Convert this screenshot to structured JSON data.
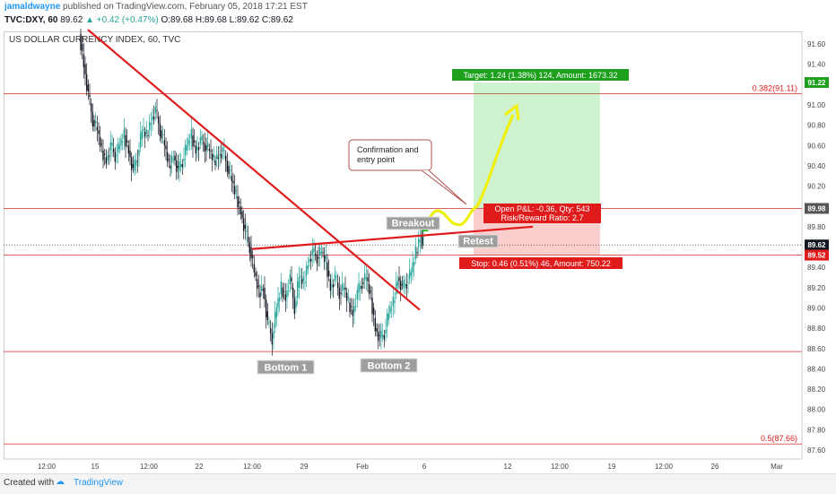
{
  "publish": {
    "author": "jamaldwayne",
    "text": "published on TradingView.com, February 05, 2018 17:21 EST"
  },
  "quote": {
    "symbol": "TVC:DXY, 60",
    "last": "89.62",
    "change": "▲ +0.42 (+0.47%)",
    "open": "O:89.68",
    "high": "H:89.68",
    "low": "L:89.62",
    "close": "C:89.62"
  },
  "chart_title": "US DOLLAR CURRENCY INDEX, 60, TVC",
  "chart_data": {
    "type": "candlestick",
    "price_axis": {
      "ticks": [
        "91.60",
        "91.40",
        "91.20",
        "91.00",
        "90.80",
        "90.60",
        "90.40",
        "90.20",
        "90.00",
        "89.80",
        "89.60",
        "89.40",
        "89.20",
        "89.00",
        "88.80",
        "88.60",
        "88.40",
        "88.20",
        "88.00",
        "87.80",
        "87.60"
      ],
      "range": [
        87.6,
        91.8
      ]
    },
    "time_axis": {
      "ticks": [
        "12:00",
        "15",
        "12:00",
        "22",
        "12:00",
        "29",
        "Feb",
        "6",
        "12",
        "12:00",
        "19",
        "12:00",
        "26",
        "Mar"
      ]
    },
    "price_tags": [
      {
        "label": "91.22",
        "price": 91.22,
        "color": "#1ea01e"
      },
      {
        "label": "89.98",
        "price": 89.98,
        "color": "#555555"
      },
      {
        "label": "89.62",
        "price": 89.62,
        "color": "#131722"
      },
      {
        "label": "38:28",
        "price": 89.53,
        "color": "#131722"
      },
      {
        "label": "89.52",
        "price": 89.52,
        "color": "#e01b1b"
      }
    ],
    "fib_levels": [
      {
        "label": "0.382(91.11)",
        "price": 91.11
      },
      {
        "label": "0.5(87.66)",
        "price": 87.66
      }
    ],
    "hlines": [
      91.11,
      89.98,
      89.52,
      88.57,
      87.66
    ],
    "current_price": 89.62,
    "position": {
      "target_label": "Target: 1.24 (1.38%) 124, Amount: 1673.32",
      "pnl_label": "Open P&L: -0.36, Qty: 543",
      "rr_label": "Risk/Reward Ratio: 2.7",
      "stop_label": "Stop: 0.46 (0.51%) 46, Amount: 750.22",
      "entry": 89.98,
      "target": 91.22,
      "stop": 89.52
    },
    "annotations": [
      {
        "text": "Breakout"
      },
      {
        "text": "Retest"
      },
      {
        "text": "Bottom 1"
      },
      {
        "text": "Bottom 2"
      },
      {
        "text": "Confirmation and"
      },
      {
        "text": "entry point"
      }
    ],
    "colors": {
      "up": "#26a69a",
      "down": "#131722",
      "trend": "#e01b1b",
      "arrow": "#f0f000",
      "profit": "rgba(60,200,60,0.25)",
      "loss": "rgba(240,60,60,0.25)"
    }
  },
  "footer": {
    "created": "Created with",
    "brand": "TradingView"
  }
}
